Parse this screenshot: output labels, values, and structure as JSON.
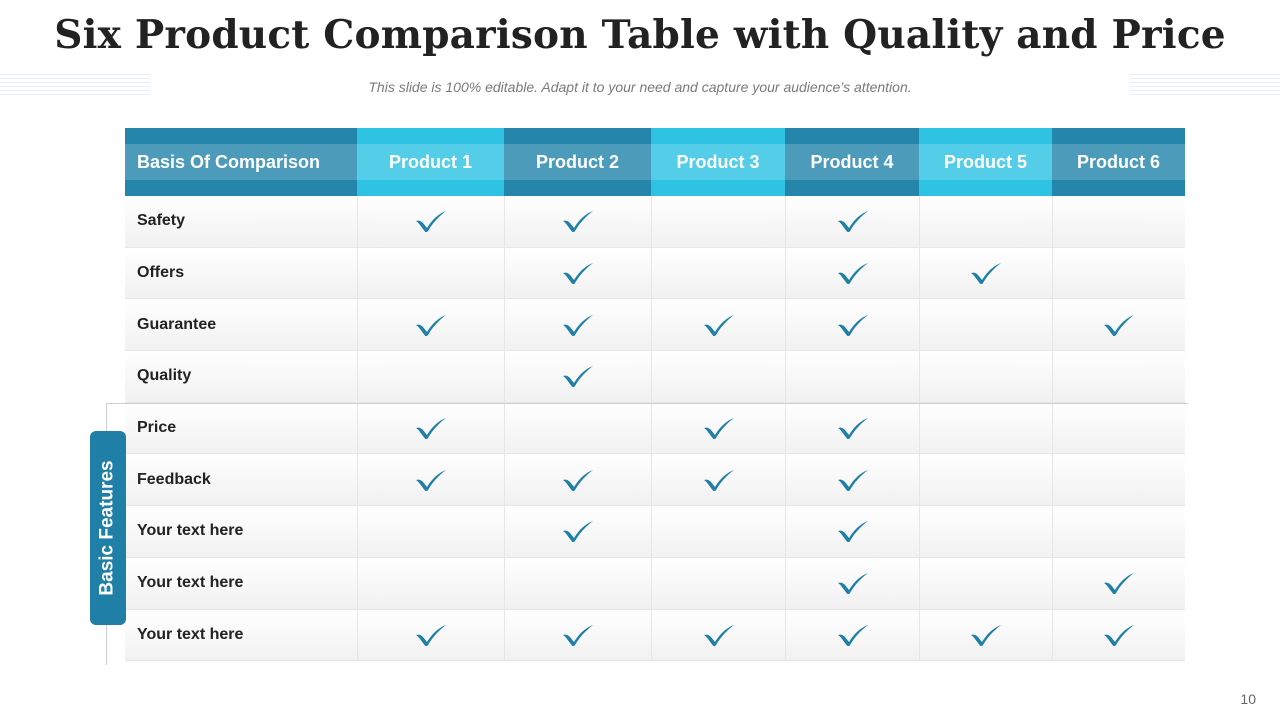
{
  "slide": {
    "title": "Six Product Comparison Table with Quality and Price",
    "subtitle": "This slide is 100% editable. Adapt it to your need and capture your audience’s attention.",
    "page_number": "10",
    "side_label": "Basic Features"
  },
  "colors": {
    "header_dark": "#2585ab",
    "header_light": "#2ec3e3",
    "check": "#1f7fa6"
  },
  "icons": {
    "check": "checkmark-icon"
  },
  "table": {
    "headers": [
      "Basis Of Comparison",
      "Product 1",
      "Product 2",
      "Product 3",
      "Product 4",
      "Product 5",
      "Product 6"
    ],
    "rows": [
      {
        "label": "Safety",
        "checks": [
          true,
          true,
          false,
          true,
          false,
          false
        ]
      },
      {
        "label": "Offers",
        "checks": [
          false,
          true,
          false,
          true,
          true,
          false
        ]
      },
      {
        "label": "Guarantee",
        "checks": [
          true,
          true,
          true,
          true,
          false,
          true
        ]
      },
      {
        "label": "Quality",
        "checks": [
          false,
          true,
          false,
          false,
          false,
          false
        ]
      },
      {
        "label": "Price",
        "checks": [
          true,
          false,
          true,
          true,
          false,
          false
        ]
      },
      {
        "label": "Feedback",
        "checks": [
          true,
          true,
          true,
          true,
          false,
          false
        ]
      },
      {
        "label": "Your text here",
        "checks": [
          false,
          true,
          false,
          true,
          false,
          false
        ]
      },
      {
        "label": "Your text here",
        "checks": [
          false,
          false,
          false,
          true,
          false,
          true
        ]
      },
      {
        "label": "Your text here",
        "checks": [
          true,
          true,
          true,
          true,
          true,
          true
        ]
      }
    ]
  }
}
